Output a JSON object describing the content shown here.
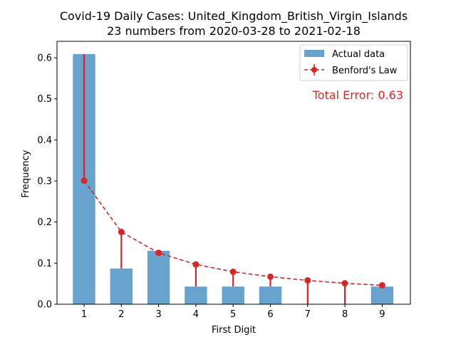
{
  "chart_data": {
    "type": "bar",
    "title": "Covid-19 Daily Cases: United_Kingdom_British_Virgin_Islands",
    "subtitle": "23 numbers from 2020-03-28 to 2021-02-18",
    "xlabel": "First Digit",
    "ylabel": "Frequency",
    "categories": [
      "1",
      "2",
      "3",
      "4",
      "5",
      "6",
      "7",
      "8",
      "9"
    ],
    "series": [
      {
        "name": "Actual data",
        "type": "bar",
        "color": "#5f9ec9",
        "values": [
          0.609,
          0.087,
          0.13,
          0.043,
          0.043,
          0.043,
          0.0,
          0.0,
          0.043
        ]
      },
      {
        "name": "Benford's Law",
        "type": "line",
        "color": "#d62728",
        "values": [
          0.301,
          0.176,
          0.125,
          0.097,
          0.079,
          0.067,
          0.058,
          0.051,
          0.046
        ]
      }
    ],
    "ylim": [
      0,
      0.64
    ],
    "yticks": [
      "0.0",
      "0.1",
      "0.2",
      "0.3",
      "0.4",
      "0.5",
      "0.6"
    ],
    "legend_position": "top-right",
    "annotation": "Total Error: 0.63",
    "annotation_color": "#d62728"
  }
}
